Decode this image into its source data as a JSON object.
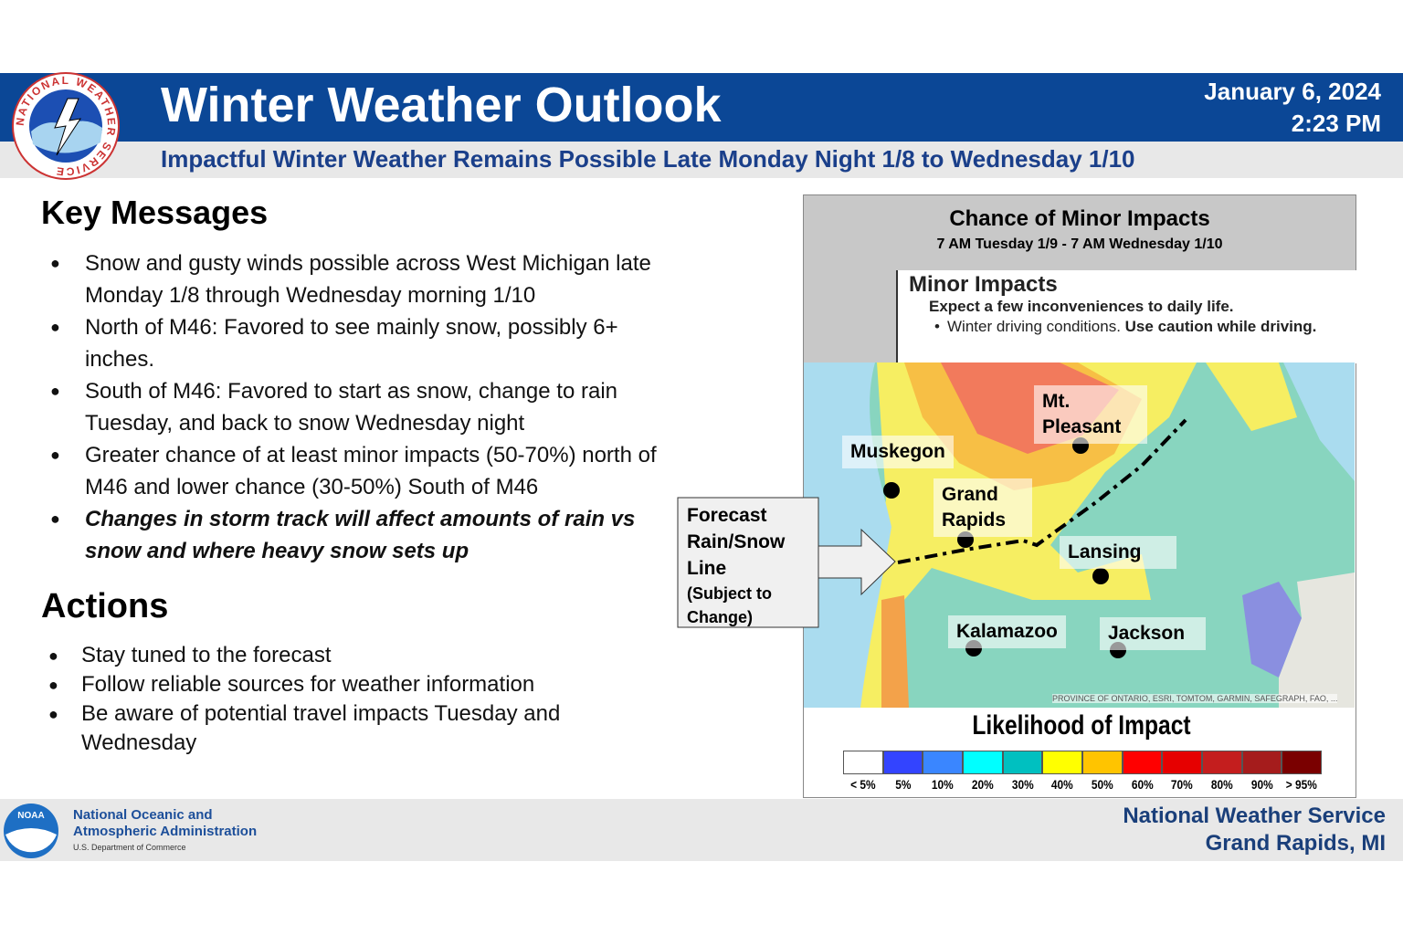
{
  "header": {
    "logo_text": "NATIONAL WEATHER SERVICE",
    "title": "Winter Weather Outlook",
    "date": "January 6, 2024",
    "time": "2:23 PM",
    "subtitle": "Impactful Winter Weather Remains Possible Late Monday Night 1/8 to Wednesday 1/10"
  },
  "key_messages": {
    "title": "Key Messages",
    "items": [
      {
        "text": "Snow and gusty winds possible across West Michigan late Monday 1/8 through Wednesday morning 1/10"
      },
      {
        "text": "North of M46: Favored to see mainly snow, possibly 6+ inches."
      },
      {
        "text": "South of M46: Favored to start as snow, change to rain Tuesday, and back to snow Wednesday night"
      },
      {
        "text": "Greater chance of at least minor impacts (50-70%) north of M46 and lower chance (30-50%) South of M46"
      },
      {
        "text": "Changes in storm track will affect amounts of rain vs snow and where heavy snow sets up",
        "emphasis": true
      }
    ]
  },
  "actions": {
    "title": "Actions",
    "items": [
      "Stay tuned to the forecast",
      "Follow reliable sources for weather information",
      "Be aware of potential travel impacts Tuesday and Wednesday"
    ]
  },
  "map": {
    "title": "Chance of Minor Impacts",
    "period": "7 AM Tuesday 1/9 - 7 AM Wednesday 1/10",
    "impact_box": {
      "title": "Minor Impacts",
      "description": "Expect a few inconveniences to daily life.",
      "bullet": "Winter driving  conditions.",
      "bullet_bold": "Use caution while driving."
    },
    "cities": [
      "Mt. Pleasant",
      "Muskegon",
      "Grand Rapids",
      "Lansing",
      "Kalamazoo",
      "Jackson"
    ],
    "attribution": "PROVINCE OF ONTARIO, ESRI, TOMTOM, GARMIN, SAFEGRAPH, FAO, ...",
    "callout": {
      "title": "Forecast Rain/Snow Line",
      "note": "(Subject to Change)"
    },
    "legend": {
      "title": "Likelihood of Impact",
      "items": [
        {
          "label": "< 5%",
          "color": "#ffffff"
        },
        {
          "label": "5%",
          "color": "#3344ff"
        },
        {
          "label": "10%",
          "color": "#3a86ff"
        },
        {
          "label": "20%",
          "color": "#00ffff"
        },
        {
          "label": "30%",
          "color": "#00c0c0"
        },
        {
          "label": "40%",
          "color": "#ffff00"
        },
        {
          "label": "50%",
          "color": "#ffc400"
        },
        {
          "label": "60%",
          "color": "#ff0000"
        },
        {
          "label": "70%",
          "color": "#e60000"
        },
        {
          "label": "80%",
          "color": "#c41e1e"
        },
        {
          "label": "90%",
          "color": "#a51c1c"
        },
        {
          "label": "> 95%",
          "color": "#7a0000"
        }
      ]
    }
  },
  "footer": {
    "noaa_logo": "NOAA",
    "agency": "National Oceanic and Atmospheric Administration",
    "department": "U.S. Department of Commerce",
    "office": "National Weather Service",
    "location": "Grand Rapids, MI"
  }
}
